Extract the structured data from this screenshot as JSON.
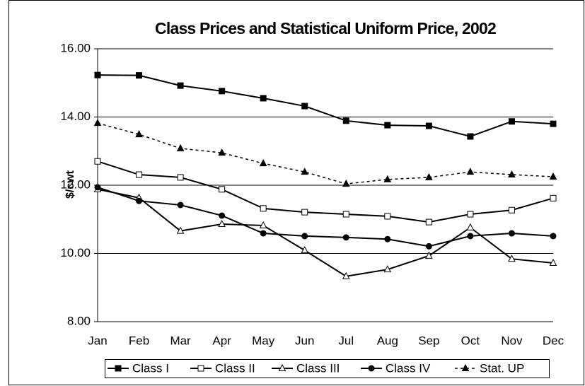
{
  "chart_data": {
    "type": "line",
    "title": "Class Prices and Statistical Uniform Price, 2002",
    "y_label": "$/cwt",
    "categories": [
      "Jan",
      "Feb",
      "Mar",
      "Apr",
      "May",
      "Jun",
      "Jul",
      "Aug",
      "Sep",
      "Oct",
      "Nov",
      "Dec"
    ],
    "series": [
      {
        "name": "Class I",
        "color": "#000000",
        "marker": "square",
        "filled": true,
        "dashed": false,
        "values": [
          15.23,
          15.22,
          14.92,
          14.76,
          14.55,
          14.32,
          13.89,
          13.76,
          13.74,
          13.43,
          13.87,
          13.8
        ]
      },
      {
        "name": "Class II",
        "color": "#000000",
        "marker": "square",
        "filled": false,
        "dashed": false,
        "values": [
          12.7,
          12.31,
          12.23,
          11.88,
          11.32,
          11.21,
          11.15,
          11.09,
          10.92,
          11.15,
          11.27,
          11.62
        ]
      },
      {
        "name": "Class III",
        "color": "#000000",
        "marker": "triangle",
        "filled": false,
        "dashed": false,
        "values": [
          11.88,
          11.63,
          10.66,
          10.86,
          10.82,
          10.09,
          9.33,
          9.53,
          9.93,
          10.76,
          9.84,
          9.72
        ]
      },
      {
        "name": "Class IV",
        "color": "#000000",
        "marker": "circle",
        "filled": true,
        "dashed": false,
        "values": [
          11.94,
          11.54,
          11.42,
          11.11,
          10.59,
          10.51,
          10.47,
          10.42,
          10.21,
          10.51,
          10.59,
          10.51
        ]
      },
      {
        "name": "Stat. UP",
        "color": "#000000",
        "marker": "triangle",
        "filled": true,
        "dashed": true,
        "values": [
          13.82,
          13.49,
          13.08,
          12.95,
          12.64,
          12.39,
          12.04,
          12.17,
          12.23,
          12.39,
          12.31,
          12.25
        ]
      }
    ],
    "ylim": [
      8,
      16
    ],
    "yticks": [
      {
        "value": 8,
        "label": "8.00"
      },
      {
        "value": 10,
        "label": "10.00"
      },
      {
        "value": 12,
        "label": "12.00"
      },
      {
        "value": 14,
        "label": "14.00"
      },
      {
        "value": 16,
        "label": "16.00"
      }
    ],
    "grid": true,
    "legend": "bottom"
  }
}
